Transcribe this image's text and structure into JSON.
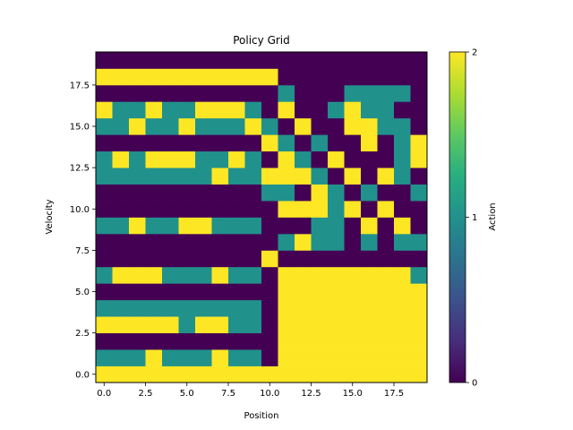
{
  "chart_data": {
    "type": "heatmap",
    "title": "Policy Grid",
    "xlabel": "Position",
    "ylabel": "Velocity",
    "x_ticks": [
      "0.0",
      "2.5",
      "5.0",
      "7.5",
      "10.0",
      "12.5",
      "15.0",
      "17.5"
    ],
    "y_ticks": [
      "0.0",
      "2.5",
      "5.0",
      "7.5",
      "10.0",
      "12.5",
      "15.0",
      "17.5"
    ],
    "x_range": [
      -0.5,
      19.5
    ],
    "y_range": [
      -0.5,
      19.5
    ],
    "colorbar": {
      "label": "Action",
      "ticks": [
        "0",
        "1",
        "2"
      ],
      "range": [
        0,
        2
      ],
      "colormap": "viridis"
    },
    "colors": {
      "0": "#440154",
      "1": "#21918c",
      "2": "#fde725"
    },
    "rows_bottom_to_top": [
      "22222222222222222222",
      "11121112110222222222",
      "00000000000222222222",
      "22222122110222222222",
      "11111111110222222222",
      "00000000000222222222",
      "12221112110222222221",
      "00000000002000000000",
      "00000000000121101011",
      "11211221110001102020",
      "00000000000222120200",
      "00000000001102101001",
      "11111112112221020210",
      "12122211210210200012",
      "00000000002101002012",
      "11211211121020022110",
      "21121122210200121100",
      "00000000000100011110",
      "22222222222000000000",
      "00000000000000000000"
    ]
  }
}
